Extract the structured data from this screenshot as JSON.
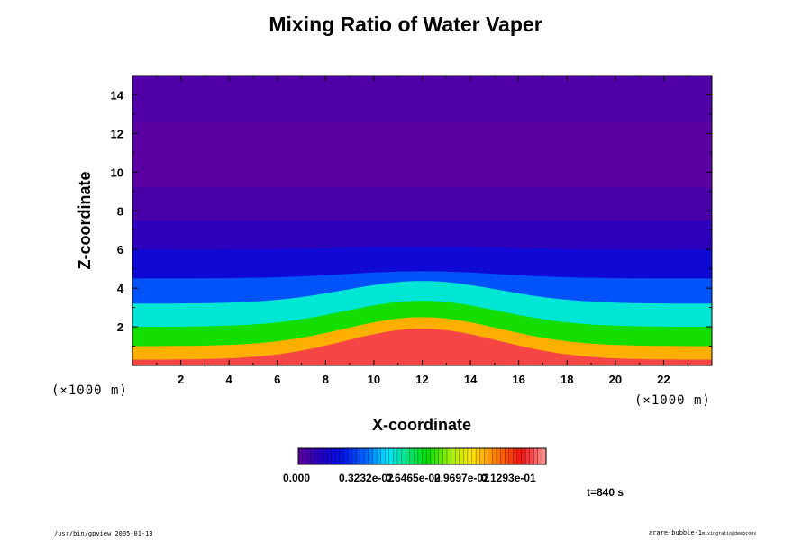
{
  "title": "Mixing Ratio of Water Vaper",
  "time_label": "t=840 s",
  "footer": {
    "left": "/usr/bin/gpview 2005-01-13",
    "right_main": "arare-bubble-1",
    "right_sub": "mixingratio@deepconv"
  },
  "chart_data": {
    "type": "heatmap",
    "title": "Mixing Ratio of Water Vaper",
    "xlabel": "X-coordinate",
    "ylabel": "Z-coordinate",
    "x_unit": "(×1000 m)",
    "y_unit": "(×1000 m)",
    "xlim": [
      0,
      24
    ],
    "ylim": [
      0,
      15
    ],
    "xticks": [
      2,
      4,
      6,
      8,
      10,
      12,
      14,
      16,
      18,
      20,
      22
    ],
    "yticks": [
      2,
      4,
      6,
      8,
      10,
      12,
      14
    ],
    "colorbar": {
      "range": [
        0.0,
        0.016
      ],
      "tick_labels": [
        "0.000",
        "0.3232e-02",
        "0.6465e-02",
        "0.9697e-02",
        "0.1293e-01"
      ]
    },
    "field": {
      "description_type": "layered",
      "bubble_center_x": 12,
      "bubble_peak_height": 3.0,
      "bubble_half_width": 4.5,
      "layers": [
        {
          "z_top": 0.3,
          "value": 0.015
        },
        {
          "z_top": 1.0,
          "value": 0.012
        },
        {
          "z_top": 2.0,
          "value": 0.0085
        },
        {
          "z_top": 3.2,
          "value": 0.0062
        },
        {
          "z_top": 4.5,
          "value": 0.004
        },
        {
          "z_top": 6.0,
          "value": 0.0022
        },
        {
          "z_top": 7.5,
          "value": 0.0012
        },
        {
          "z_top": 9.2,
          "value": 0.0006
        },
        {
          "z_top": 12.6,
          "value": 0.0001
        },
        {
          "z_top": 15.0,
          "value": 0.0004
        }
      ]
    }
  }
}
